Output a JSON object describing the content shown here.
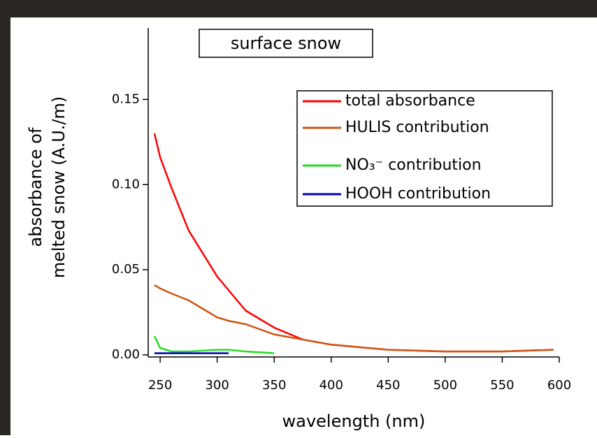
{
  "chart_data": {
    "type": "line",
    "title": "surface snow",
    "ylabel": [
      "absorbance of",
      "melted snow (A.U./m)"
    ],
    "xlabel": "wavelength (nm)",
    "x": [
      245,
      250,
      260,
      275,
      300,
      310,
      325,
      350,
      375,
      400,
      450,
      500,
      550,
      595
    ],
    "series": [
      {
        "name": "total absorbance",
        "color": "#ff0000",
        "values": [
          0.13,
          0.116,
          0.098,
          0.073,
          0.046,
          0.038,
          0.026,
          0.016,
          0.009,
          0.006,
          0.003,
          0.002,
          0.002,
          0.003
        ]
      },
      {
        "name": "HULIS contribution",
        "color": "#cc5511",
        "values": [
          0.041,
          0.039,
          0.036,
          0.032,
          0.022,
          0.02,
          0.018,
          0.012,
          0.009,
          0.006,
          0.003,
          0.002,
          0.002,
          0.003
        ]
      },
      {
        "name": "NO₃⁻ contribution",
        "color": "#22dd22",
        "values": [
          0.011,
          0.004,
          0.002,
          0.002,
          0.003,
          0.003,
          0.002,
          0.001,
          null,
          null,
          null,
          null,
          null,
          null
        ]
      },
      {
        "name": "HOOH contribution",
        "color": "#0000bb",
        "values": [
          0.001,
          0.001,
          0.001,
          0.001,
          0.001,
          0.001,
          null,
          null,
          null,
          null,
          null,
          null,
          null,
          null
        ]
      }
    ],
    "xlim": [
      239.5,
      600
    ],
    "ylim": [
      0,
      0.192
    ],
    "xticks": [
      250,
      300,
      350,
      400,
      450,
      500,
      550,
      600
    ],
    "yticks": [
      {
        "value": 0,
        "label": "0.00"
      },
      {
        "value": 0.05,
        "label": "0.05"
      },
      {
        "value": 0.1,
        "label": "0.10"
      },
      {
        "value": 0.15,
        "label": "0.15"
      }
    ]
  }
}
